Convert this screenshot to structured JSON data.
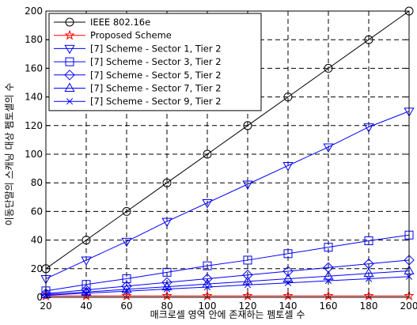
{
  "chart_data": {
    "type": "line",
    "xlabel": "매크로셀 영역 안에 존재하는 펨토셀 수",
    "ylabel": "이동단말의 스캐닝 대상 펨토셀의 수",
    "xlim": [
      20,
      200
    ],
    "ylim": [
      0,
      200
    ],
    "xticks": [
      20,
      40,
      60,
      80,
      100,
      120,
      140,
      160,
      180,
      200
    ],
    "yticks": [
      0,
      20,
      40,
      60,
      80,
      100,
      120,
      140,
      160,
      180,
      200
    ],
    "grid": true,
    "legend_position": "top-left",
    "x": [
      20,
      40,
      60,
      80,
      100,
      120,
      140,
      160,
      180,
      200
    ],
    "series": [
      {
        "name": "IEEE 802.16e",
        "color": "#000000",
        "marker": "circle",
        "values": [
          20,
          40,
          60,
          80,
          100,
          120,
          140,
          160,
          180,
          200
        ]
      },
      {
        "name": "Proposed Scheme",
        "color": "#ff0000",
        "marker": "star",
        "values": [
          1,
          1,
          1,
          1,
          1,
          1,
          1,
          1,
          1,
          1
        ]
      },
      {
        "name": "[7] Scheme - Sector 1, Tier 2",
        "color": "#0000ff",
        "marker": "triangle-down",
        "values": [
          13,
          26,
          39,
          53,
          66,
          79,
          92,
          105,
          119,
          130
        ]
      },
      {
        "name": "[7] Scheme - Sector 3, Tier 2",
        "color": "#0000ff",
        "marker": "square",
        "values": [
          4.5,
          9,
          13,
          17.5,
          22,
          26,
          30.5,
          35,
          39.5,
          43.5
        ]
      },
      {
        "name": "[7] Scheme - Sector 5, Tier 2",
        "color": "#0000ff",
        "marker": "diamond",
        "values": [
          2.6,
          5.2,
          7.8,
          10.4,
          13,
          15.6,
          18.2,
          20.8,
          23.4,
          26
        ]
      },
      {
        "name": "[7] Scheme - Sector 7, Tier 2",
        "color": "#0000ff",
        "marker": "triangle-up",
        "values": [
          1.9,
          3.7,
          5.6,
          7.4,
          9.3,
          11.1,
          13,
          14.8,
          16.7,
          18.5
        ]
      },
      {
        "name": "[7] Scheme - Sector 9, Tier 2",
        "color": "#0000ff",
        "marker": "x",
        "values": [
          1.4,
          2.9,
          4.3,
          5.8,
          7.2,
          8.7,
          10.1,
          11.6,
          13,
          14.5
        ]
      }
    ]
  }
}
